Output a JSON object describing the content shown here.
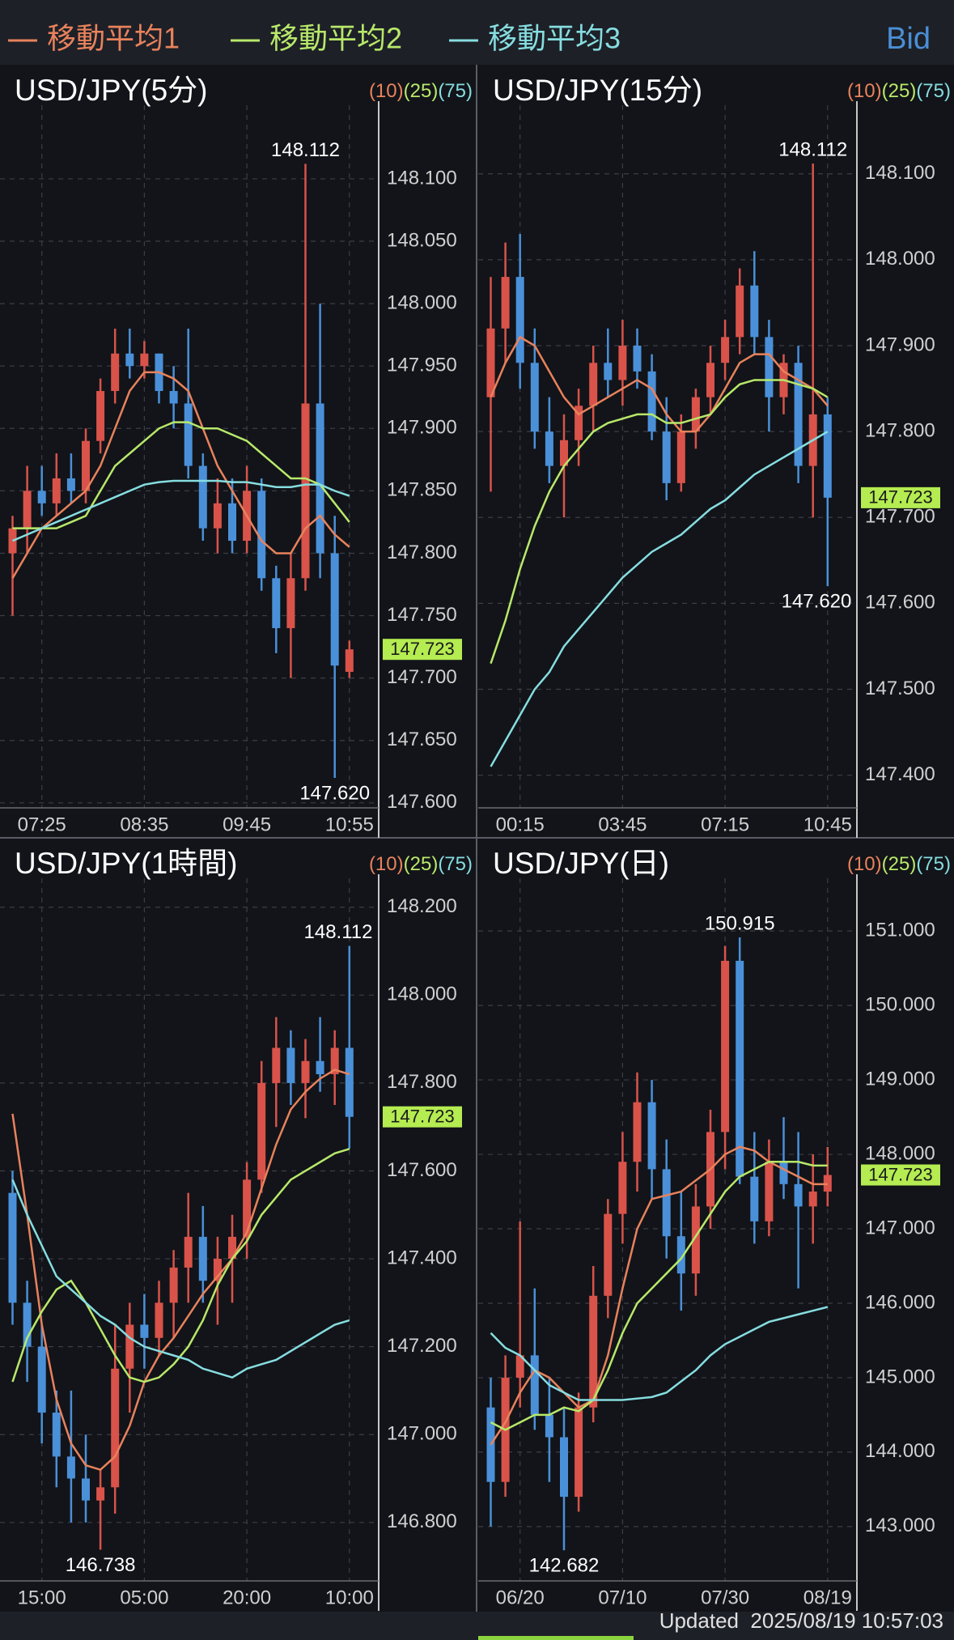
{
  "header": {
    "legend": [
      {
        "name": "移動平均1",
        "color": "#e8825c"
      },
      {
        "name": "移動平均2",
        "color": "#b8e86a"
      },
      {
        "name": "移動平均3",
        "color": "#86dde0"
      }
    ],
    "price_type": "Bid"
  },
  "chart_data": [
    {
      "type": "candlestick",
      "title": "USD/JPY(5分)",
      "up_color": "#d9534a",
      "down_color": "#4a90d9",
      "categories": [
        null,
        null,
        "07:25",
        null,
        null,
        null,
        null,
        null,
        null,
        "08:35",
        null,
        null,
        null,
        null,
        null,
        null,
        "09:45",
        null,
        null,
        null,
        null,
        null,
        null,
        "10:55"
      ],
      "open": [
        147.8,
        147.82,
        147.85,
        147.84,
        147.86,
        147.85,
        147.89,
        147.93,
        147.96,
        147.95,
        147.96,
        147.93,
        147.92,
        147.87,
        147.82,
        147.84,
        147.81,
        147.85,
        147.78,
        147.74,
        147.78,
        147.92,
        147.8,
        147.705
      ],
      "high": [
        147.83,
        147.87,
        147.87,
        147.88,
        147.88,
        147.9,
        147.94,
        147.98,
        147.98,
        147.97,
        147.96,
        147.95,
        147.98,
        147.88,
        147.86,
        147.86,
        147.87,
        147.86,
        147.79,
        147.8,
        148.112,
        148.0,
        147.83,
        147.73
      ],
      "low": [
        147.75,
        147.8,
        147.83,
        147.83,
        147.84,
        147.84,
        147.88,
        147.92,
        147.94,
        147.94,
        147.92,
        147.9,
        147.86,
        147.81,
        147.8,
        147.8,
        147.8,
        147.77,
        147.72,
        147.7,
        147.77,
        147.78,
        147.62,
        147.7
      ],
      "close": [
        147.82,
        147.85,
        147.84,
        147.86,
        147.85,
        147.89,
        147.93,
        147.96,
        147.95,
        147.96,
        147.93,
        147.92,
        147.87,
        147.82,
        147.84,
        147.81,
        147.85,
        147.78,
        147.74,
        147.78,
        147.92,
        147.8,
        147.71,
        147.723
      ],
      "series": [
        {
          "period": "(10)",
          "color": "#e8825c",
          "values": [
            147.78,
            147.8,
            147.82,
            147.83,
            147.84,
            147.85,
            147.87,
            147.9,
            147.93,
            147.945,
            147.945,
            147.94,
            147.93,
            147.9,
            147.87,
            147.85,
            147.83,
            147.81,
            147.8,
            147.8,
            147.82,
            147.83,
            147.815,
            147.805
          ]
        },
        {
          "period": "(25)",
          "color": "#b8e86a",
          "values": [
            147.82,
            147.82,
            147.82,
            147.82,
            147.825,
            147.83,
            147.85,
            147.87,
            147.88,
            147.89,
            147.9,
            147.905,
            147.905,
            147.9,
            147.9,
            147.895,
            147.89,
            147.88,
            147.87,
            147.86,
            147.86,
            147.855,
            147.84,
            147.825
          ]
        },
        {
          "period": "(75)",
          "color": "#86dde0",
          "values": [
            147.81,
            147.815,
            147.82,
            147.825,
            147.83,
            147.835,
            147.84,
            147.845,
            147.85,
            147.855,
            147.857,
            147.858,
            147.858,
            147.858,
            147.858,
            147.857,
            147.857,
            147.855,
            147.853,
            147.853,
            147.855,
            147.855,
            147.85,
            147.846
          ]
        }
      ],
      "ylim": [
        147.596,
        148.146
      ],
      "yticks": [
        {
          "value": 147.6,
          "label": "147.600"
        },
        {
          "value": 147.65,
          "label": "147.650"
        },
        {
          "value": 147.7,
          "label": "147.700"
        },
        {
          "value": 147.75,
          "label": "147.750"
        },
        {
          "value": 147.8,
          "label": "147.800"
        },
        {
          "value": 147.85,
          "label": "147.850"
        },
        {
          "value": 147.9,
          "label": "147.900"
        },
        {
          "value": 147.95,
          "label": "147.950"
        },
        {
          "value": 148,
          "label": "148.000"
        },
        {
          "value": 148.05,
          "label": "148.050"
        },
        {
          "value": 148.1,
          "label": "148.100"
        }
      ],
      "high_label": 148.112,
      "low_label": {
        "value": 147.62,
        "label": "147.620"
      },
      "last": 147.723,
      "grid": true
    },
    {
      "type": "candlestick",
      "title": "USD/JPY(15分)",
      "up_color": "#d9534a",
      "down_color": "#4a90d9",
      "categories": [
        null,
        null,
        "00:15",
        null,
        null,
        null,
        null,
        null,
        null,
        "03:45",
        null,
        null,
        null,
        null,
        null,
        null,
        "07:15",
        null,
        null,
        null,
        null,
        null,
        null,
        "10:45"
      ],
      "open": [
        147.84,
        147.92,
        147.98,
        147.88,
        147.8,
        147.76,
        147.79,
        147.83,
        147.88,
        147.86,
        147.9,
        147.87,
        147.8,
        147.74,
        147.8,
        147.84,
        147.88,
        147.91,
        147.97,
        147.91,
        147.84,
        147.88,
        147.76,
        147.82
      ],
      "high": [
        147.98,
        148.02,
        148.03,
        147.92,
        147.84,
        147.82,
        147.85,
        147.9,
        147.92,
        147.93,
        147.92,
        147.89,
        147.84,
        147.82,
        147.85,
        147.9,
        147.93,
        147.99,
        148.01,
        147.93,
        147.89,
        147.9,
        148.112,
        147.84
      ],
      "low": [
        147.73,
        147.88,
        147.85,
        147.78,
        147.74,
        147.7,
        147.76,
        147.8,
        147.84,
        147.83,
        147.85,
        147.79,
        147.72,
        147.73,
        147.78,
        147.82,
        147.86,
        147.89,
        147.89,
        147.8,
        147.82,
        147.74,
        147.7,
        147.62
      ],
      "close": [
        147.92,
        147.98,
        147.88,
        147.8,
        147.76,
        147.79,
        147.83,
        147.88,
        147.86,
        147.9,
        147.87,
        147.8,
        147.74,
        147.8,
        147.84,
        147.88,
        147.91,
        147.97,
        147.91,
        147.84,
        147.88,
        147.76,
        147.82,
        147.723
      ],
      "series": [
        {
          "period": "(10)",
          "color": "#e8825c",
          "values": [
            147.84,
            147.88,
            147.91,
            147.9,
            147.87,
            147.84,
            147.82,
            147.83,
            147.84,
            147.85,
            147.86,
            147.85,
            147.82,
            147.8,
            147.8,
            147.82,
            147.85,
            147.88,
            147.89,
            147.89,
            147.87,
            147.86,
            147.85,
            147.83
          ]
        },
        {
          "period": "(25)",
          "color": "#b8e86a",
          "values": [
            147.53,
            147.58,
            147.64,
            147.69,
            147.73,
            147.76,
            147.78,
            147.8,
            147.81,
            147.815,
            147.82,
            147.82,
            147.81,
            147.81,
            147.815,
            147.82,
            147.84,
            147.855,
            147.86,
            147.86,
            147.86,
            147.855,
            147.85,
            147.84
          ]
        },
        {
          "period": "(75)",
          "color": "#86dde0",
          "values": [
            147.41,
            147.44,
            147.47,
            147.5,
            147.52,
            147.55,
            147.57,
            147.59,
            147.61,
            147.63,
            147.645,
            147.66,
            147.67,
            147.68,
            147.695,
            147.71,
            147.72,
            147.735,
            147.75,
            147.76,
            147.77,
            147.78,
            147.79,
            147.8
          ]
        }
      ],
      "ylim": [
        147.362,
        148.161
      ],
      "yticks": [
        {
          "value": 147.4,
          "label": "147.400"
        },
        {
          "value": 147.5,
          "label": "147.500"
        },
        {
          "value": 147.6,
          "label": "147.600"
        },
        {
          "value": 147.7,
          "label": "147.700"
        },
        {
          "value": 147.8,
          "label": "147.800"
        },
        {
          "value": 147.9,
          "label": "147.900"
        },
        {
          "value": 148,
          "label": "148.000"
        },
        {
          "value": 148.1,
          "label": "148.100"
        }
      ],
      "high_label": 148.112,
      "low_label": {
        "value": 147.62,
        "label": "147.620"
      },
      "last": 147.723,
      "grid": true
    },
    {
      "type": "candlestick",
      "title": "USD/JPY(1時間)",
      "up_color": "#d9534a",
      "down_color": "#4a90d9",
      "categories": [
        null,
        null,
        "15:00",
        null,
        null,
        null,
        null,
        null,
        null,
        "05:00",
        null,
        null,
        null,
        null,
        null,
        null,
        "20:00",
        null,
        null,
        null,
        null,
        null,
        null,
        "10:00"
      ],
      "open": [
        147.55,
        147.3,
        147.2,
        147.05,
        146.95,
        146.9,
        146.85,
        146.88,
        147.15,
        147.25,
        147.22,
        147.3,
        147.38,
        147.45,
        147.35,
        147.4,
        147.45,
        147.58,
        147.8,
        147.88,
        147.8,
        147.85,
        147.82,
        147.88
      ],
      "high": [
        147.6,
        147.35,
        147.25,
        147.1,
        147.1,
        147.0,
        146.92,
        147.25,
        147.3,
        147.32,
        147.35,
        147.42,
        147.55,
        147.52,
        147.45,
        147.5,
        147.62,
        147.85,
        147.95,
        147.92,
        147.9,
        147.95,
        147.92,
        148.112
      ],
      "low": [
        147.25,
        147.12,
        146.98,
        146.88,
        146.8,
        146.8,
        146.738,
        146.82,
        147.05,
        147.15,
        147.18,
        147.22,
        147.3,
        147.3,
        147.25,
        147.3,
        147.4,
        147.55,
        147.7,
        147.75,
        147.72,
        147.78,
        147.75,
        147.65
      ],
      "close": [
        147.3,
        147.2,
        147.05,
        146.95,
        146.9,
        146.85,
        146.88,
        147.15,
        147.25,
        147.22,
        147.3,
        147.38,
        147.45,
        147.35,
        147.4,
        147.45,
        147.58,
        147.8,
        147.88,
        147.8,
        147.85,
        147.82,
        147.88,
        147.723
      ],
      "series": [
        {
          "period": "(10)",
          "color": "#e8825c",
          "values": [
            147.73,
            147.5,
            147.25,
            147.08,
            146.98,
            146.93,
            146.92,
            146.95,
            147.02,
            147.12,
            147.18,
            147.22,
            147.27,
            147.32,
            147.36,
            147.4,
            147.46,
            147.56,
            147.66,
            147.74,
            147.78,
            147.81,
            147.83,
            147.82
          ]
        },
        {
          "period": "(25)",
          "color": "#b8e86a",
          "values": [
            147.12,
            147.22,
            147.28,
            147.33,
            147.35,
            147.3,
            147.24,
            147.18,
            147.13,
            147.12,
            147.13,
            147.16,
            147.2,
            147.26,
            147.34,
            147.4,
            147.44,
            147.5,
            147.54,
            147.58,
            147.6,
            147.62,
            147.64,
            147.65
          ]
        },
        {
          "period": "(75)",
          "color": "#86dde0",
          "values": [
            147.58,
            147.5,
            147.43,
            147.36,
            147.33,
            147.3,
            147.27,
            147.25,
            147.22,
            147.2,
            147.19,
            147.18,
            147.17,
            147.15,
            147.14,
            147.13,
            147.15,
            147.16,
            147.17,
            147.19,
            147.21,
            147.23,
            147.25,
            147.26
          ]
        }
      ],
      "ylim": [
        146.667,
        148.229
      ],
      "yticks": [
        {
          "value": 146.8,
          "label": "146.800"
        },
        {
          "value": 147,
          "label": "147.000"
        },
        {
          "value": 147.2,
          "label": "147.200"
        },
        {
          "value": 147.4,
          "label": "147.400"
        },
        {
          "value": 147.6,
          "label": "147.600"
        },
        {
          "value": 147.8,
          "label": "147.800"
        },
        {
          "value": 148,
          "label": "148.000"
        },
        {
          "value": 148.2,
          "label": "148.200"
        }
      ],
      "high_label": 148.112,
      "low_label": 146.738,
      "last": 147.723,
      "grid": true
    },
    {
      "type": "candlestick",
      "title": "USD/JPY(日)",
      "up_color": "#d9534a",
      "down_color": "#4a90d9",
      "categories": [
        null,
        null,
        "06/20",
        null,
        null,
        null,
        null,
        null,
        null,
        "07/10",
        null,
        null,
        null,
        null,
        null,
        null,
        "07/30",
        null,
        null,
        null,
        null,
        null,
        null,
        "08/19"
      ],
      "open": [
        144.6,
        143.6,
        145.0,
        145.3,
        144.5,
        144.2,
        143.4,
        144.6,
        146.1,
        147.2,
        147.9,
        148.7,
        147.8,
        146.9,
        146.4,
        147.3,
        148.3,
        150.6,
        147.7,
        147.1,
        147.9,
        147.6,
        147.3,
        147.5
      ],
      "high": [
        145.0,
        145.3,
        147.1,
        146.2,
        145.0,
        144.6,
        144.8,
        146.5,
        147.4,
        148.3,
        149.1,
        149.0,
        148.2,
        147.5,
        147.6,
        148.6,
        150.8,
        150.915,
        148.3,
        148.2,
        148.5,
        148.3,
        148.0,
        148.1
      ],
      "low": [
        143.0,
        143.4,
        144.6,
        144.3,
        143.6,
        142.682,
        143.2,
        144.4,
        145.8,
        146.8,
        147.5,
        147.4,
        146.6,
        145.9,
        146.1,
        147.0,
        147.8,
        147.6,
        146.8,
        146.9,
        147.4,
        146.2,
        146.8,
        147.3
      ],
      "close": [
        143.6,
        145.0,
        145.3,
        144.5,
        144.2,
        143.4,
        144.6,
        146.1,
        147.2,
        147.9,
        148.7,
        147.8,
        146.9,
        146.4,
        147.3,
        148.3,
        150.6,
        147.7,
        147.1,
        147.9,
        147.6,
        147.3,
        147.5,
        147.723
      ],
      "series": [
        {
          "period": "(10)",
          "color": "#e8825c",
          "values": [
            144.1,
            144.4,
            144.8,
            145.1,
            145.0,
            144.8,
            144.6,
            144.7,
            145.3,
            146.2,
            147.0,
            147.4,
            147.45,
            147.5,
            147.65,
            147.8,
            148.0,
            148.1,
            148.05,
            147.9,
            147.8,
            147.7,
            147.6,
            147.6
          ]
        },
        {
          "period": "(25)",
          "color": "#b8e86a",
          "values": [
            144.4,
            144.3,
            144.4,
            144.5,
            144.5,
            144.6,
            144.55,
            144.7,
            145.1,
            145.6,
            146.0,
            146.2,
            146.4,
            146.6,
            146.9,
            147.2,
            147.5,
            147.7,
            147.8,
            147.9,
            147.9,
            147.9,
            147.85,
            147.85
          ]
        },
        {
          "period": "(75)",
          "color": "#86dde0",
          "values": [
            145.6,
            145.4,
            145.3,
            145.1,
            144.9,
            144.8,
            144.7,
            144.7,
            144.7,
            144.7,
            144.72,
            144.74,
            144.8,
            144.95,
            145.1,
            145.3,
            145.45,
            145.55,
            145.65,
            145.75,
            145.8,
            145.85,
            145.9,
            145.95
          ]
        }
      ],
      "ylim": [
        142.27,
        151.491
      ],
      "yticks": [
        {
          "value": 143,
          "label": "143.000"
        },
        {
          "value": 144,
          "label": "144.000"
        },
        {
          "value": 145,
          "label": "145.000"
        },
        {
          "value": 146,
          "label": "146.000"
        },
        {
          "value": 147,
          "label": "147.000"
        },
        {
          "value": 148,
          "label": "148.000"
        },
        {
          "value": 149,
          "label": "149.000"
        },
        {
          "value": 150,
          "label": "150.000"
        },
        {
          "value": 151,
          "label": "151.000"
        }
      ],
      "high_label": 150.915,
      "low_label": 142.682,
      "last": 147.723,
      "grid": true
    }
  ],
  "footer": {
    "updated": "Updated  2025/08/19 10:57:03"
  }
}
